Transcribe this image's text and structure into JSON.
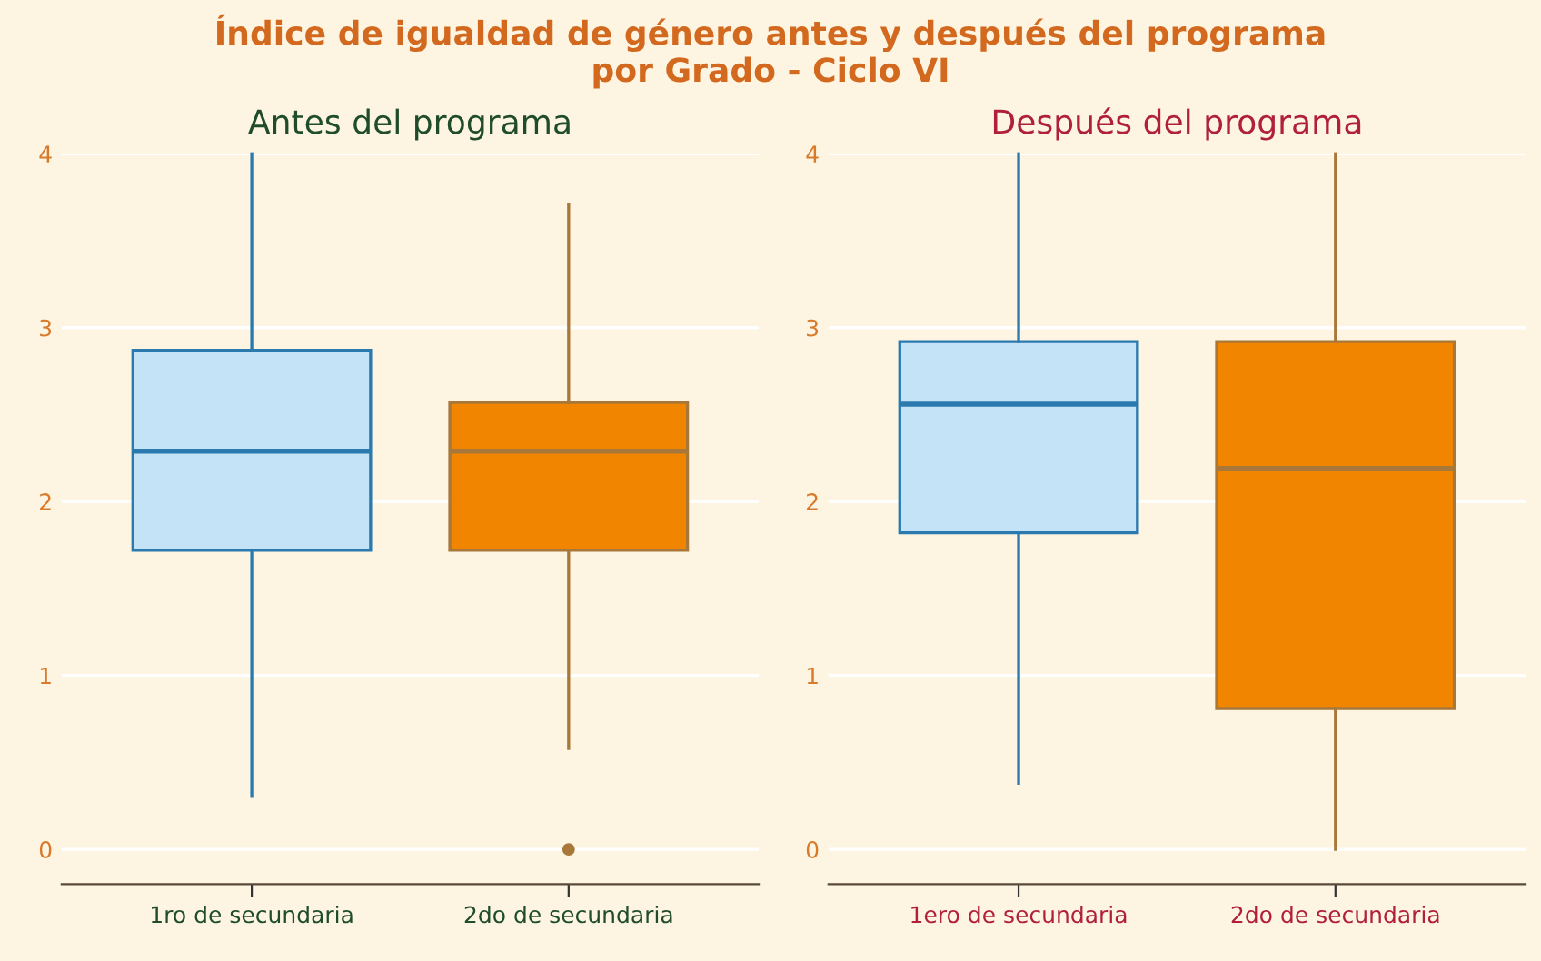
{
  "chart_data": [
    {
      "type": "box",
      "title": "Índice de igualdad de género antes y después del programa\npor Grado - Ciclo VI",
      "subtitle": "Antes del programa",
      "categories": [
        "1ro de secundaria",
        "2do de secundaria"
      ],
      "boxes": [
        {
          "low": 0.31,
          "q1": 1.72,
          "median": 2.29,
          "q3": 2.87,
          "high": 4.0
        },
        {
          "low": 0.58,
          "q1": 1.72,
          "median": 2.29,
          "q3": 2.57,
          "high": 3.71,
          "outliers": [
            0
          ]
        }
      ],
      "colors": [
        "#c5e3f6",
        "#f28500"
      ],
      "ylim": [
        -0.2,
        4
      ],
      "yticks": [
        0,
        1,
        2,
        3,
        4
      ],
      "grid": "y"
    },
    {
      "type": "box",
      "subtitle": "Después del programa",
      "categories": [
        "1ero de secundaria",
        "2do de secundaria"
      ],
      "boxes": [
        {
          "low": 0.38,
          "q1": 1.82,
          "median": 2.56,
          "q3": 2.92,
          "high": 4.0
        },
        {
          "low": 0.0,
          "q1": 0.81,
          "median": 2.19,
          "q3": 2.92,
          "high": 4.0
        }
      ],
      "colors": [
        "#c5e3f6",
        "#f28500"
      ],
      "ylim": [
        -0.2,
        4
      ],
      "yticks": [
        0,
        1,
        2,
        3,
        4
      ],
      "grid": "y"
    }
  ]
}
